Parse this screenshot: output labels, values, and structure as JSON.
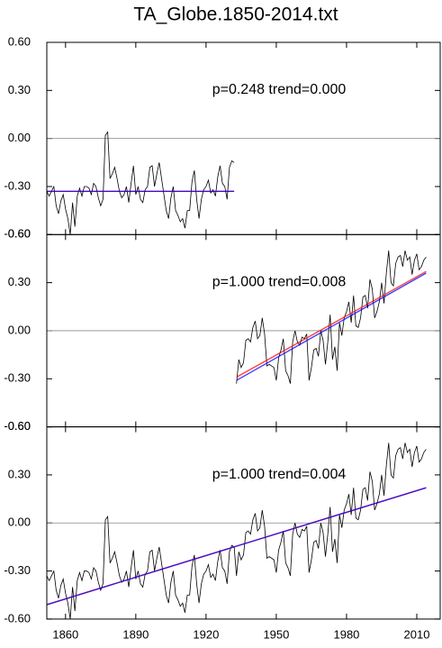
{
  "chart_data": [
    {
      "type": "line",
      "title": "TA_Globe.1850-2014.txt",
      "annotation": "p=0.248  trend=0.000",
      "xlim": [
        1852,
        2020
      ],
      "ylim": [
        -0.6,
        0.6
      ],
      "yticks": [
        {
          "value": 0.6,
          "label": "0.60"
        },
        {
          "value": 0.3,
          "label": "0.30"
        },
        {
          "value": 0,
          "label": "0.00"
        },
        {
          "value": -0.3,
          "label": "-0.30"
        },
        {
          "value": -0.6,
          "label": "-0.60"
        }
      ],
      "x": [
        1852,
        1853,
        1854,
        1855,
        1856,
        1857,
        1858,
        1859,
        1860,
        1861,
        1862,
        1863,
        1864,
        1865,
        1866,
        1867,
        1868,
        1869,
        1870,
        1871,
        1872,
        1873,
        1874,
        1875,
        1876,
        1877,
        1878,
        1879,
        1880,
        1881,
        1882,
        1883,
        1884,
        1885,
        1886,
        1887,
        1888,
        1889,
        1890,
        1891,
        1892,
        1893,
        1894,
        1895,
        1896,
        1897,
        1898,
        1899,
        1900,
        1901,
        1902,
        1903,
        1904,
        1905,
        1906,
        1907,
        1908,
        1909,
        1910,
        1911,
        1912,
        1913,
        1914,
        1915,
        1916,
        1917,
        1918,
        1919,
        1920,
        1921,
        1922,
        1923,
        1924,
        1925,
        1926,
        1927,
        1928,
        1929,
        1930,
        1931,
        1932
      ],
      "series": [
        {
          "color": "#000000",
          "values": [
            -0.33,
            -0.36,
            -0.33,
            -0.3,
            -0.42,
            -0.47,
            -0.39,
            -0.35,
            -0.44,
            -0.5,
            -0.6,
            -0.4,
            -0.55,
            -0.36,
            -0.31,
            -0.36,
            -0.3,
            -0.3,
            -0.31,
            -0.35,
            -0.28,
            -0.3,
            -0.37,
            -0.42,
            -0.38,
            0.02,
            0.04,
            -0.25,
            -0.22,
            -0.18,
            -0.25,
            -0.33,
            -0.37,
            -0.35,
            -0.3,
            -0.4,
            -0.28,
            -0.17,
            -0.35,
            -0.3,
            -0.38,
            -0.4,
            -0.32,
            -0.3,
            -0.18,
            -0.17,
            -0.3,
            -0.22,
            -0.15,
            -0.25,
            -0.35,
            -0.45,
            -0.5,
            -0.37,
            -0.3,
            -0.45,
            -0.48,
            -0.52,
            -0.5,
            -0.56,
            -0.45,
            -0.45,
            -0.27,
            -0.2,
            -0.38,
            -0.5,
            -0.38,
            -0.32,
            -0.3,
            -0.26,
            -0.34,
            -0.32,
            -0.36,
            -0.24,
            -0.17,
            -0.28,
            -0.3,
            -0.38,
            -0.18,
            -0.14,
            -0.15
          ]
        }
      ],
      "trend_lines": [
        {
          "color": "#ff0000",
          "x": [
            1852,
            1932
          ],
          "values": [
            -0.33,
            -0.33
          ]
        },
        {
          "color": "#0000ff",
          "x": [
            1852,
            1932
          ],
          "values": [
            -0.33,
            -0.33
          ]
        }
      ]
    },
    {
      "type": "line",
      "annotation": "p=1.000  trend=0.008",
      "xlim": [
        1852,
        2020
      ],
      "ylim": [
        -0.6,
        0.6
      ],
      "yticks": [
        {
          "value": 0.6,
          "label": "0.60"
        },
        {
          "value": 0.3,
          "label": "0.30"
        },
        {
          "value": 0,
          "label": "0.00"
        },
        {
          "value": -0.3,
          "label": "-0.30"
        },
        {
          "value": -0.6,
          "label": "-0.60"
        }
      ],
      "x": [
        1933,
        1934,
        1935,
        1936,
        1937,
        1938,
        1939,
        1940,
        1941,
        1942,
        1943,
        1944,
        1945,
        1946,
        1947,
        1948,
        1949,
        1950,
        1951,
        1952,
        1953,
        1954,
        1955,
        1956,
        1957,
        1958,
        1959,
        1960,
        1961,
        1962,
        1963,
        1964,
        1965,
        1966,
        1967,
        1968,
        1969,
        1970,
        1971,
        1972,
        1973,
        1974,
        1975,
        1976,
        1977,
        1978,
        1979,
        1980,
        1981,
        1982,
        1983,
        1984,
        1985,
        1986,
        1987,
        1988,
        1989,
        1990,
        1991,
        1992,
        1993,
        1994,
        1995,
        1996,
        1997,
        1998,
        1999,
        2000,
        2001,
        2002,
        2003,
        2004,
        2005,
        2006,
        2007,
        2008,
        2009,
        2010,
        2011,
        2012,
        2013,
        2014
      ],
      "series": [
        {
          "color": "#000000",
          "values": [
            -0.33,
            -0.18,
            -0.23,
            -0.2,
            -0.06,
            -0.05,
            -0.07,
            0.02,
            0.06,
            -0.05,
            -0.03,
            0.08,
            -0.02,
            -0.22,
            -0.21,
            -0.22,
            -0.23,
            -0.31,
            -0.17,
            -0.12,
            -0.05,
            -0.25,
            -0.28,
            -0.33,
            -0.07,
            0.0,
            -0.07,
            -0.09,
            -0.04,
            -0.05,
            -0.02,
            -0.31,
            -0.23,
            -0.12,
            -0.11,
            -0.16,
            0.0,
            -0.06,
            -0.21,
            -0.07,
            0.1,
            -0.18,
            -0.1,
            -0.25,
            0.05,
            -0.03,
            0.08,
            0.12,
            0.18,
            0.05,
            0.22,
            0.03,
            0.02,
            0.08,
            0.21,
            0.22,
            0.14,
            0.32,
            0.26,
            0.08,
            0.12,
            0.18,
            0.3,
            0.17,
            0.36,
            0.5,
            0.3,
            0.28,
            0.42,
            0.46,
            0.47,
            0.4,
            0.5,
            0.44,
            0.46,
            0.35,
            0.44,
            0.48,
            0.38,
            0.4,
            0.44,
            0.46
          ]
        }
      ],
      "trend_lines": [
        {
          "color": "#ff0000",
          "x": [
            1933,
            2014
          ],
          "values": [
            -0.29,
            0.37
          ]
        },
        {
          "color": "#0000ff",
          "x": [
            1933,
            2014
          ],
          "values": [
            -0.31,
            0.36
          ]
        }
      ]
    },
    {
      "type": "line",
      "annotation": "p=1.000  trend=0.004",
      "xlim": [
        1852,
        2020
      ],
      "ylim": [
        -0.6,
        0.6
      ],
      "yticks": [
        {
          "value": 0.6,
          "label": "0.60"
        },
        {
          "value": 0.3,
          "label": "0.30"
        },
        {
          "value": 0,
          "label": "0.00"
        },
        {
          "value": -0.3,
          "label": "-0.30"
        },
        {
          "value": -0.6,
          "label": "-0.60"
        }
      ],
      "xticks": [
        1860,
        1890,
        1920,
        1950,
        1980,
        2010
      ],
      "x": [
        1852,
        1853,
        1854,
        1855,
        1856,
        1857,
        1858,
        1859,
        1860,
        1861,
        1862,
        1863,
        1864,
        1865,
        1866,
        1867,
        1868,
        1869,
        1870,
        1871,
        1872,
        1873,
        1874,
        1875,
        1876,
        1877,
        1878,
        1879,
        1880,
        1881,
        1882,
        1883,
        1884,
        1885,
        1886,
        1887,
        1888,
        1889,
        1890,
        1891,
        1892,
        1893,
        1894,
        1895,
        1896,
        1897,
        1898,
        1899,
        1900,
        1901,
        1902,
        1903,
        1904,
        1905,
        1906,
        1907,
        1908,
        1909,
        1910,
        1911,
        1912,
        1913,
        1914,
        1915,
        1916,
        1917,
        1918,
        1919,
        1920,
        1921,
        1922,
        1923,
        1924,
        1925,
        1926,
        1927,
        1928,
        1929,
        1930,
        1931,
        1932,
        1933,
        1934,
        1935,
        1936,
        1937,
        1938,
        1939,
        1940,
        1941,
        1942,
        1943,
        1944,
        1945,
        1946,
        1947,
        1948,
        1949,
        1950,
        1951,
        1952,
        1953,
        1954,
        1955,
        1956,
        1957,
        1958,
        1959,
        1960,
        1961,
        1962,
        1963,
        1964,
        1965,
        1966,
        1967,
        1968,
        1969,
        1970,
        1971,
        1972,
        1973,
        1974,
        1975,
        1976,
        1977,
        1978,
        1979,
        1980,
        1981,
        1982,
        1983,
        1984,
        1985,
        1986,
        1987,
        1988,
        1989,
        1990,
        1991,
        1992,
        1993,
        1994,
        1995,
        1996,
        1997,
        1998,
        1999,
        2000,
        2001,
        2002,
        2003,
        2004,
        2005,
        2006,
        2007,
        2008,
        2009,
        2010,
        2011,
        2012,
        2013,
        2014
      ],
      "series": [
        {
          "color": "#000000",
          "values": [
            -0.33,
            -0.36,
            -0.33,
            -0.3,
            -0.42,
            -0.47,
            -0.39,
            -0.35,
            -0.44,
            -0.5,
            -0.6,
            -0.4,
            -0.55,
            -0.36,
            -0.31,
            -0.36,
            -0.3,
            -0.3,
            -0.31,
            -0.35,
            -0.28,
            -0.3,
            -0.37,
            -0.42,
            -0.38,
            0.02,
            0.04,
            -0.25,
            -0.22,
            -0.18,
            -0.25,
            -0.33,
            -0.37,
            -0.35,
            -0.3,
            -0.4,
            -0.28,
            -0.17,
            -0.35,
            -0.3,
            -0.38,
            -0.4,
            -0.32,
            -0.3,
            -0.18,
            -0.17,
            -0.3,
            -0.22,
            -0.15,
            -0.25,
            -0.35,
            -0.45,
            -0.5,
            -0.37,
            -0.3,
            -0.45,
            -0.48,
            -0.52,
            -0.5,
            -0.56,
            -0.45,
            -0.45,
            -0.27,
            -0.2,
            -0.38,
            -0.5,
            -0.38,
            -0.32,
            -0.3,
            -0.26,
            -0.34,
            -0.32,
            -0.36,
            -0.24,
            -0.17,
            -0.28,
            -0.3,
            -0.38,
            -0.18,
            -0.14,
            -0.15,
            -0.33,
            -0.18,
            -0.23,
            -0.2,
            -0.06,
            -0.05,
            -0.07,
            0.02,
            0.06,
            -0.05,
            -0.03,
            0.08,
            -0.02,
            -0.22,
            -0.21,
            -0.22,
            -0.23,
            -0.31,
            -0.17,
            -0.12,
            -0.05,
            -0.25,
            -0.28,
            -0.33,
            -0.07,
            0.0,
            -0.07,
            -0.09,
            -0.04,
            -0.05,
            -0.02,
            -0.31,
            -0.23,
            -0.12,
            -0.11,
            -0.16,
            0.0,
            -0.06,
            -0.21,
            -0.07,
            0.1,
            -0.18,
            -0.1,
            -0.25,
            0.05,
            -0.03,
            0.08,
            0.12,
            0.18,
            0.05,
            0.22,
            0.03,
            0.02,
            0.08,
            0.21,
            0.22,
            0.14,
            0.32,
            0.26,
            0.08,
            0.12,
            0.18,
            0.3,
            0.17,
            0.36,
            0.5,
            0.3,
            0.28,
            0.42,
            0.46,
            0.47,
            0.4,
            0.5,
            0.44,
            0.46,
            0.35,
            0.44,
            0.48,
            0.38,
            0.4,
            0.44,
            0.46
          ]
        }
      ],
      "trend_lines": [
        {
          "color": "#ff0000",
          "x": [
            1852,
            2014
          ],
          "values": [
            -0.51,
            0.22
          ]
        },
        {
          "color": "#0000ff",
          "x": [
            1852,
            2014
          ],
          "values": [
            -0.51,
            0.22
          ]
        }
      ]
    }
  ]
}
